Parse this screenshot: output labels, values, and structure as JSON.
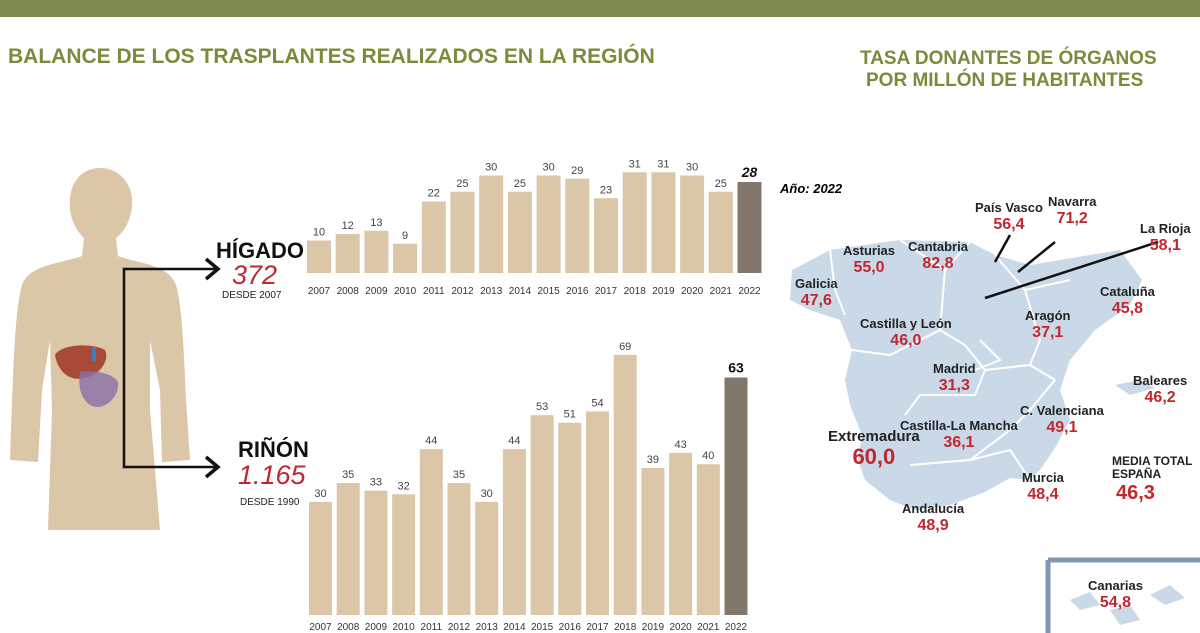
{
  "left_title": "BALANCE DE LOS TRASPLANTES REALIZADOS EN LA REGIÓN",
  "right_title_line1": "TASA DONANTES DE ÓRGANOS",
  "right_title_line2": "POR MILLÓN DE HABITANTES",
  "colors": {
    "bar": "#dbc6a8",
    "bar_highlight": "#82776a",
    "header": "#7d8b50",
    "accent_red": "#c2272d",
    "map": "#c9d9e8",
    "map_highlight": "#7f97b0"
  },
  "higado": {
    "label": "HÍGADO",
    "total": "372",
    "since": "DESDE 2007"
  },
  "rinon": {
    "label": "RIÑÓN",
    "total": "1.165",
    "since": "DESDE 1990"
  },
  "chart_data": [
    {
      "type": "bar",
      "name": "HÍGADO",
      "categories": [
        "2007",
        "2008",
        "2009",
        "2010",
        "2011",
        "2012",
        "2013",
        "2014",
        "2015",
        "2016",
        "2017",
        "2018",
        "2019",
        "2020",
        "2021",
        "2022"
      ],
      "values": [
        10,
        12,
        13,
        9,
        22,
        25,
        30,
        25,
        30,
        29,
        23,
        31,
        31,
        30,
        25,
        28
      ],
      "highlight": "2022"
    },
    {
      "type": "bar",
      "name": "RIÑÓN",
      "categories": [
        "2007",
        "2008",
        "2009",
        "2010",
        "2011",
        "2012",
        "2013",
        "2014",
        "2015",
        "2016",
        "2017",
        "2018",
        "2019",
        "2020",
        "2021",
        "2022"
      ],
      "values": [
        30,
        35,
        33,
        32,
        44,
        35,
        30,
        44,
        53,
        51,
        54,
        69,
        39,
        43,
        40,
        63
      ],
      "highlight": "2022"
    }
  ],
  "map": {
    "year_label": "Año: 2022",
    "regions": [
      {
        "name": "Galicia",
        "value": "47,6"
      },
      {
        "name": "Asturias",
        "value": "55,0"
      },
      {
        "name": "Cantabria",
        "value": "82,8"
      },
      {
        "name": "País Vasco",
        "value": "56,4"
      },
      {
        "name": "Navarra",
        "value": "71,2"
      },
      {
        "name": "La Rioja",
        "value": "58,1"
      },
      {
        "name": "Cataluña",
        "value": "45,8"
      },
      {
        "name": "Aragón",
        "value": "37,1"
      },
      {
        "name": "Castilla y León",
        "value": "46,0"
      },
      {
        "name": "Madrid",
        "value": "31,3"
      },
      {
        "name": "Baleares",
        "value": "46,2"
      },
      {
        "name": "C. Valenciana",
        "value": "49,1"
      },
      {
        "name": "Castilla-La Mancha",
        "value": "36,1"
      },
      {
        "name": "Extremadura",
        "value": "60,0"
      },
      {
        "name": "Murcia",
        "value": "48,4"
      },
      {
        "name": "Andalucía",
        "value": "48,9"
      },
      {
        "name": "Canarias",
        "value": "54,8"
      }
    ],
    "media_label_1": "MEDIA TOTAL",
    "media_label_2": "ESPAÑA",
    "media_value": "46,3"
  }
}
